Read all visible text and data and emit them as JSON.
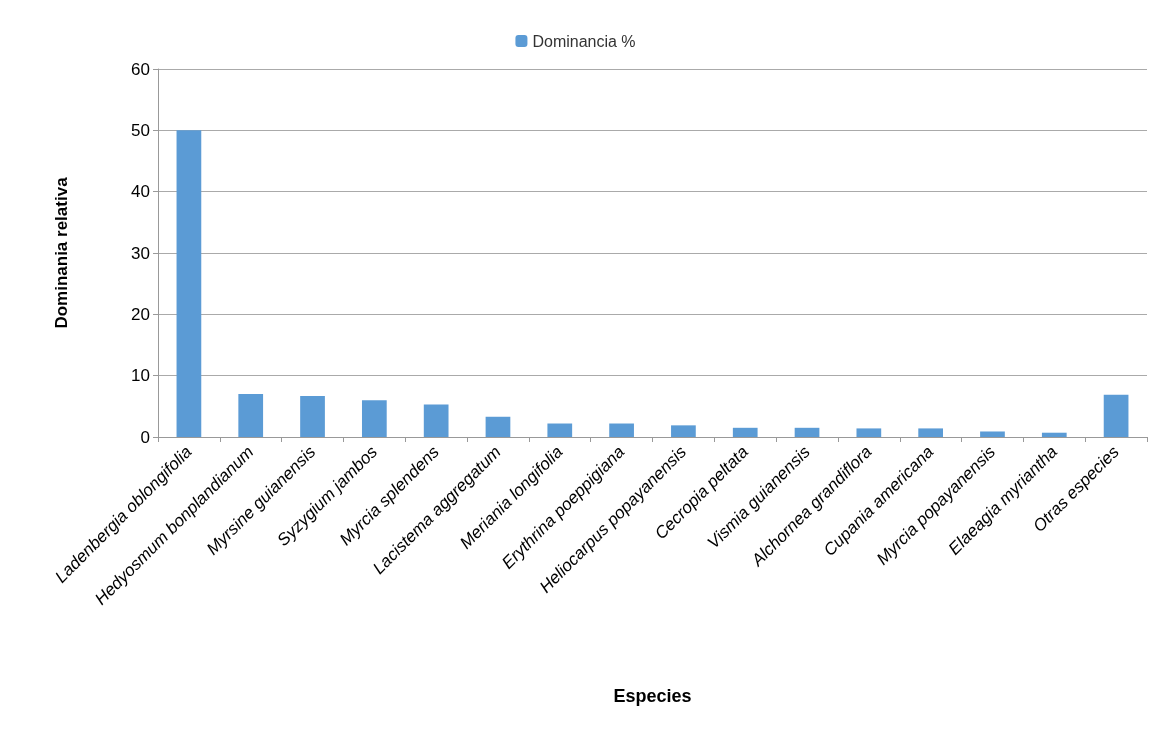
{
  "chart_data": {
    "type": "bar",
    "xlabel": "Especies",
    "ylabel": "Dominania relativa",
    "categories": [
      "Ladenbergia oblongifolia",
      "Hedyosmum bonplandianum",
      "Myrsine guianensis",
      "Syzygium jambos",
      "Myrcia splendens",
      "Lacistema aggregatum",
      "Meriania longifolia",
      "Erythrina poeppigiana",
      "Heliocarpus popayanensis",
      "Cecropia peltata",
      "Vismia guianensis",
      "Alchornea grandiflora",
      "Cupania americana",
      "Myrcia popayanensis",
      "Elaeagia myriantha",
      "Otras especies"
    ],
    "series": [
      {
        "name": "Dominancia %",
        "color": "#5b9bd5",
        "values": [
          50,
          7,
          6.7,
          6,
          5.3,
          3.3,
          2.2,
          2.2,
          1.9,
          1.5,
          1.5,
          1.4,
          1.4,
          0.9,
          0.7,
          6.9
        ]
      }
    ],
    "ylim": [
      0,
      60
    ],
    "yticks": [
      0,
      10,
      20,
      30,
      40,
      50,
      60
    ],
    "grid": "y",
    "legend": "top"
  }
}
